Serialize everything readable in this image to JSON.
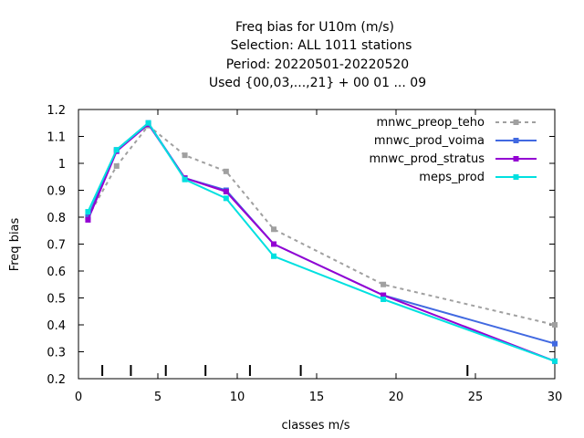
{
  "chart_data": {
    "type": "line",
    "title_lines": [
      "Freq bias  for U10m (m/s)",
      "Selection: ALL    1011 stations",
      "Period: 20220501-20220520",
      "Used {00,03,...,21} + 00 01 ... 09"
    ],
    "xlabel": "classes m/s",
    "ylabel": "Freq bias",
    "xlim": [
      0,
      30
    ],
    "ylim": [
      0.2,
      1.2
    ],
    "xticks": [
      0,
      5,
      10,
      15,
      20,
      25,
      30
    ],
    "xtick_labels": [
      "0",
      "5",
      "10",
      "15",
      "20",
      "25",
      "30"
    ],
    "yticks": [
      0.2,
      0.3,
      0.4,
      0.5,
      0.6,
      0.7,
      0.8,
      0.9,
      1,
      1.1,
      1.2
    ],
    "ytick_labels": [
      "0.2",
      "0.3",
      "0.4",
      "0.5",
      "0.6",
      "0.7",
      "0.8",
      "0.9",
      "1",
      "1.1",
      "1.2"
    ],
    "class_boundaries": [
      1.5,
      3.3,
      5.5,
      8.0,
      10.8,
      14.0,
      24.5
    ],
    "grid": false,
    "legend_position": "top-right",
    "series": [
      {
        "name": "mnwc_preop_teho",
        "color": "#a0a0a0",
        "dashed": true,
        "x": [
          0.6,
          2.4,
          4.4,
          6.7,
          9.3,
          12.3,
          19.2,
          30.0
        ],
        "y": [
          0.8,
          0.99,
          1.14,
          1.03,
          0.97,
          0.755,
          0.55,
          0.4
        ]
      },
      {
        "name": "mnwc_prod_voima",
        "color": "#4169e1",
        "dashed": false,
        "x": [
          0.6,
          2.4,
          4.4,
          6.7,
          9.3,
          12.3,
          19.2,
          30.0
        ],
        "y": [
          0.8,
          1.05,
          1.15,
          0.945,
          0.9,
          0.7,
          0.51,
          0.33
        ]
      },
      {
        "name": "mnwc_prod_stratus",
        "color": "#9400d3",
        "dashed": false,
        "x": [
          0.6,
          2.4,
          4.4,
          6.7,
          9.3,
          12.3,
          19.2,
          30.0
        ],
        "y": [
          0.79,
          1.045,
          1.145,
          0.945,
          0.895,
          0.7,
          0.51,
          0.265
        ]
      },
      {
        "name": "meps_prod",
        "color": "#00e0e0",
        "dashed": false,
        "x": [
          0.6,
          2.4,
          4.4,
          6.7,
          9.3,
          12.3,
          19.2,
          30.0
        ],
        "y": [
          0.82,
          1.05,
          1.15,
          0.94,
          0.87,
          0.655,
          0.495,
          0.265
        ]
      }
    ]
  }
}
